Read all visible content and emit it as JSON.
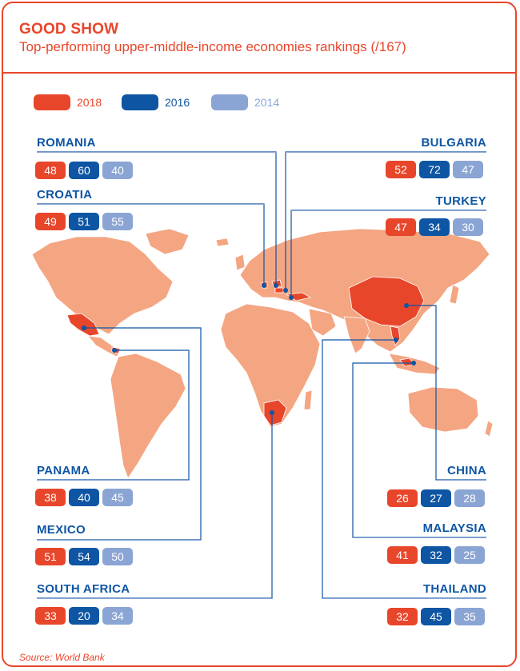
{
  "title": "GOOD SHOW",
  "subtitle": "Top-performing upper-middle-income economies rankings (/167)",
  "colors": {
    "accent": "#e8462b",
    "y2018": "#e8462b",
    "y2016": "#0e55a3",
    "y2014": "#8aa5d4",
    "map_land": "#f4a582",
    "highlight": "#e8462b"
  },
  "legend": [
    {
      "label": "2018",
      "color": "#e8462b",
      "text_color": "#e8462b"
    },
    {
      "label": "2016",
      "color": "#0e55a3",
      "text_color": "#0e55a3"
    },
    {
      "label": "2014",
      "color": "#8aa5d4",
      "text_color": "#8aa5d4"
    }
  ],
  "countries": {
    "romania": {
      "name": "ROMANIA",
      "ranks": [
        "48",
        "60",
        "40"
      ]
    },
    "croatia": {
      "name": "CROATIA",
      "ranks": [
        "49",
        "51",
        "55"
      ]
    },
    "bulgaria": {
      "name": "BULGARIA",
      "ranks": [
        "52",
        "72",
        "47"
      ]
    },
    "turkey": {
      "name": "TURKEY",
      "ranks": [
        "47",
        "34",
        "30"
      ]
    },
    "panama": {
      "name": "PANAMA",
      "ranks": [
        "38",
        "40",
        "45"
      ]
    },
    "mexico": {
      "name": "MEXICO",
      "ranks": [
        "51",
        "54",
        "50"
      ]
    },
    "south_africa": {
      "name": "SOUTH AFRICA",
      "ranks": [
        "33",
        "20",
        "34"
      ]
    },
    "china": {
      "name": "CHINA",
      "ranks": [
        "26",
        "27",
        "28"
      ]
    },
    "malaysia": {
      "name": "MALAYSIA",
      "ranks": [
        "41",
        "32",
        "25"
      ]
    },
    "thailand": {
      "name": "THAILAND",
      "ranks": [
        "32",
        "45",
        "35"
      ]
    }
  },
  "source": "Source: World Bank"
}
